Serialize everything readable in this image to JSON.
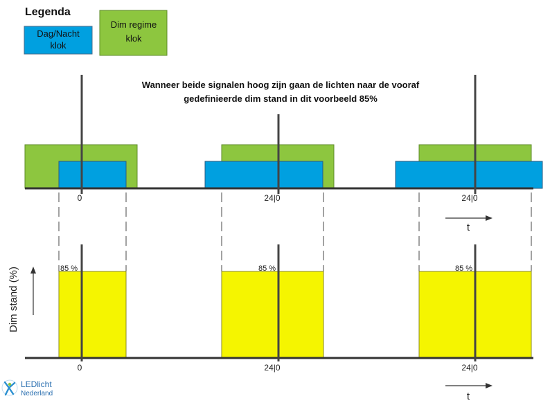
{
  "legend": {
    "title": "Legenda",
    "day_night": {
      "line1": "Dag/Nacht",
      "line2": "klok",
      "color": "#00a0e0"
    },
    "dim_regime": {
      "line1": "Dim regime",
      "line2": "klok",
      "color": "#8dc63f"
    }
  },
  "note": {
    "line1": "Wanneer beide signalen hoog zijn gaan de lichten naar  de vooraf",
    "line2": "gedefinieerde dim stand in dit voorbeeld 85%"
  },
  "top_axis": {
    "ticks": [
      "0",
      "24|0",
      "24|0"
    ],
    "t_label": "t"
  },
  "bottom_axis": {
    "ticks": [
      "0",
      "24|0",
      "24|0"
    ],
    "t_label": "t",
    "y_label": "Dim stand (%)"
  },
  "dim_level": {
    "label": "85 %",
    "value": 85,
    "color": "#f5f500"
  },
  "logo": {
    "line1": "LEDlicht",
    "line2": "Nederland"
  }
}
